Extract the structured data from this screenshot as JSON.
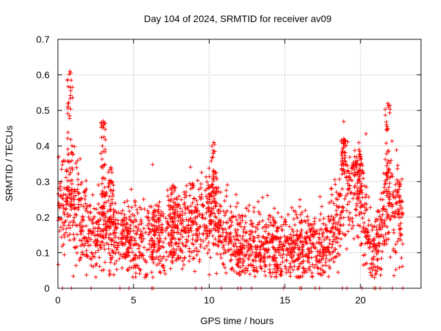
{
  "chart_data": {
    "type": "scatter",
    "title": "Day 104 of 2024, SRMTID for receiver av09",
    "xlabel": "GPS time / hours",
    "ylabel": "SRMTID / TECUs",
    "xlim": [
      0,
      24
    ],
    "ylim": [
      0,
      0.7
    ],
    "x_ticks": [
      0,
      5,
      10,
      15,
      20
    ],
    "x_tick_labels": [
      "0",
      "5",
      "10",
      "15",
      "20"
    ],
    "y_ticks": [
      0,
      0.1,
      0.2,
      0.3,
      0.4,
      0.5,
      0.6,
      0.7
    ],
    "y_tick_labels": [
      "0",
      "0.1",
      "0.2",
      "0.3",
      "0.4",
      "0.5",
      "0.6",
      "0.7"
    ],
    "grid": true,
    "marker": "+",
    "series_color": "#ff0000",
    "x_range_of_data": [
      0,
      22.8
    ],
    "profile_description_hours": [
      0.0,
      0.8,
      1.5,
      2.5,
      3.0,
      3.5,
      5.0,
      7.6,
      10.3,
      11.0,
      12.0,
      15.0,
      17.5,
      18.5,
      18.9,
      19.9,
      20.5,
      21.0,
      21.8,
      22.8
    ],
    "profile_description_median": [
      0.22,
      0.25,
      0.2,
      0.13,
      0.2,
      0.16,
      0.14,
      0.15,
      0.2,
      0.15,
      0.12,
      0.11,
      0.12,
      0.17,
      0.3,
      0.25,
      0.15,
      0.1,
      0.25,
      0.2
    ],
    "peaks": [
      {
        "x": 0.8,
        "y": 0.61
      },
      {
        "x": 3.0,
        "y": 0.47
      },
      {
        "x": 3.5,
        "y": 0.34
      },
      {
        "x": 7.6,
        "y": 0.29
      },
      {
        "x": 10.3,
        "y": 0.41
      },
      {
        "x": 18.9,
        "y": 0.42
      },
      {
        "x": 19.9,
        "y": 0.39
      },
      {
        "x": 21.8,
        "y": 0.52
      }
    ],
    "zero_markers_x": [
      0.3,
      0.9,
      2.2,
      4.1,
      4.7,
      6.2,
      6.3,
      9.1,
      9.5,
      10.8,
      11.9,
      12.1,
      12.8,
      14.9,
      16.0,
      16.1,
      17.0,
      17.3,
      18.8,
      19.1,
      20.1,
      20.9,
      21.0,
      21.3,
      22.1,
      22.8
    ]
  }
}
